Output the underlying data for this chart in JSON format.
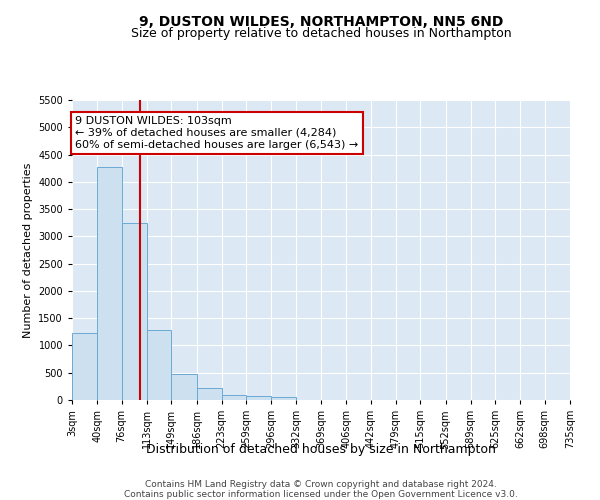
{
  "title": "9, DUSTON WILDES, NORTHAMPTON, NN5 6ND",
  "subtitle": "Size of property relative to detached houses in Northampton",
  "xlabel": "Distribution of detached houses by size in Northampton",
  "ylabel": "Number of detached properties",
  "bin_edges": [
    3,
    40,
    76,
    113,
    149,
    186,
    223,
    259,
    296,
    332,
    369,
    406,
    442,
    479,
    515,
    552,
    589,
    625,
    662,
    698,
    735
  ],
  "bin_counts": [
    1220,
    4280,
    3250,
    1280,
    480,
    220,
    100,
    70,
    50,
    0,
    0,
    0,
    0,
    0,
    0,
    0,
    0,
    0,
    0,
    0
  ],
  "bar_color": "#cce0f0",
  "bar_edge_color": "#6aaad4",
  "property_size": 103,
  "property_line_color": "#cc0000",
  "annotation_line1": "9 DUSTON WILDES: 103sqm",
  "annotation_line2": "← 39% of detached houses are smaller (4,284)",
  "annotation_line3": "60% of semi-detached houses are larger (6,543) →",
  "annotation_box_color": "#ffffff",
  "annotation_box_edge_color": "#cc0000",
  "ylim": [
    0,
    5500
  ],
  "yticks": [
    0,
    500,
    1000,
    1500,
    2000,
    2500,
    3000,
    3500,
    4000,
    4500,
    5000,
    5500
  ],
  "background_color": "#dce9f5",
  "footer_line1": "Contains HM Land Registry data © Crown copyright and database right 2024.",
  "footer_line2": "Contains public sector information licensed under the Open Government Licence v3.0.",
  "title_fontsize": 10,
  "subtitle_fontsize": 9,
  "xlabel_fontsize": 9,
  "ylabel_fontsize": 8,
  "tick_fontsize": 7,
  "annotation_fontsize": 8,
  "footer_fontsize": 6.5
}
